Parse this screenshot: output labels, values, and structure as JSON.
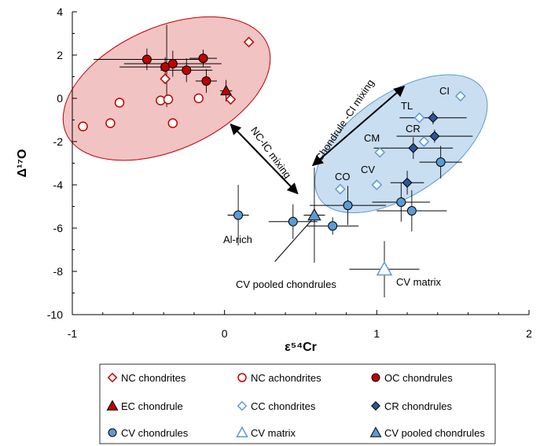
{
  "chart_data": {
    "type": "scatter",
    "xlabel": "ε⁵⁴Cr",
    "ylabel": "Δ¹⁷O",
    "xlim": [
      -1,
      2
    ],
    "ylim": [
      -10,
      4
    ],
    "x_ticks": [
      "-1",
      "0",
      "1",
      "2"
    ],
    "y_ticks": [
      "4",
      "2",
      "0",
      "-2",
      "-4",
      "-6",
      "-8",
      "-10"
    ],
    "grid": false,
    "legend_position": "bottom",
    "series": [
      {
        "name": "NC chondrites",
        "marker": "diamond-open",
        "color": "#c00000",
        "points": [
          [
            0.16,
            2.6
          ],
          [
            -0.39,
            0.9
          ],
          [
            0.04,
            -0.05
          ]
        ]
      },
      {
        "name": "NC achondrites",
        "marker": "circle-open",
        "color": "#c00000",
        "points": [
          [
            -0.93,
            -1.3
          ],
          [
            -0.75,
            -1.15
          ],
          [
            -0.69,
            -0.2
          ],
          [
            -0.42,
            -0.1
          ],
          [
            -0.37,
            -0.05
          ],
          [
            -0.34,
            -1.15
          ],
          [
            -0.17,
            0.0
          ]
        ]
      },
      {
        "name": "OC chondrules",
        "marker": "circle-filled",
        "color": "#c00000",
        "points": [
          [
            -0.51,
            1.8
          ],
          [
            -0.39,
            1.45
          ],
          [
            -0.34,
            1.6
          ],
          [
            -0.25,
            1.3
          ],
          [
            -0.14,
            1.85
          ],
          [
            -0.12,
            0.8
          ]
        ]
      },
      {
        "name": "EC chondrule",
        "marker": "triangle-filled",
        "color": "#c00000",
        "points": [
          [
            0.01,
            0.35
          ]
        ]
      },
      {
        "name": "CC chondrites",
        "marker": "diamond-open",
        "color": "#5b9bd5",
        "points": [
          [
            1.55,
            0.1
          ],
          [
            1.28,
            -0.9
          ],
          [
            1.31,
            -2.0
          ],
          [
            1.02,
            -2.5
          ],
          [
            1.0,
            -4.0
          ],
          [
            0.76,
            -4.2
          ]
        ]
      },
      {
        "name": "CR chondrules",
        "marker": "diamond-filled",
        "color": "#2f5597",
        "points": [
          [
            1.37,
            -0.9
          ],
          [
            1.38,
            -1.75
          ],
          [
            1.24,
            -2.3
          ],
          [
            1.2,
            -3.9
          ]
        ]
      },
      {
        "name": "CV chondrules",
        "marker": "circle-filled",
        "color": "#5b9bd5",
        "points": [
          [
            0.09,
            -5.4
          ],
          [
            0.45,
            -5.7
          ],
          [
            0.71,
            -5.9
          ],
          [
            0.81,
            -4.95
          ],
          [
            1.16,
            -4.8
          ],
          [
            1.23,
            -5.2
          ],
          [
            1.42,
            -2.95
          ]
        ]
      },
      {
        "name": "CV matrix",
        "marker": "triangle-open",
        "color": "#5b9bd5",
        "points": [
          [
            1.05,
            -7.9
          ]
        ]
      },
      {
        "name": "CV pooled chondrules",
        "marker": "triangle-filled",
        "color": "#5b9bd5",
        "points": [
          [
            0.59,
            -5.4
          ]
        ]
      }
    ],
    "annotations": {
      "nc_ic": "NC-IC mixing",
      "chondrule_ci": "Chondrule -CI mixing",
      "ci": "CI",
      "tl": "TL",
      "cr": "CR",
      "cm": "CM",
      "cv": "CV",
      "co": "CO",
      "al_rich": "Al-rich",
      "cv_pooled": "CV pooled chondrules",
      "cv_matrix": "CV matrix"
    }
  },
  "legend": {
    "items": [
      {
        "label": "NC chondrites",
        "marker": "diamond-open",
        "color": "#c00000"
      },
      {
        "label": "NC achondrites",
        "marker": "circle-open",
        "color": "#c00000"
      },
      {
        "label": "OC chondrules",
        "marker": "circle-filled",
        "color": "#c00000"
      },
      {
        "label": "EC chondrule",
        "marker": "triangle-filled",
        "color": "#c00000"
      },
      {
        "label": "CC chondrites",
        "marker": "diamond-open",
        "color": "#5b9bd5"
      },
      {
        "label": "CR chondrules",
        "marker": "diamond-filled",
        "color": "#2f5597"
      },
      {
        "label": "CV chondrules",
        "marker": "circle-filled",
        "color": "#5b9bd5"
      },
      {
        "label": "CV matrix",
        "marker": "triangle-open",
        "color": "#5b9bd5"
      },
      {
        "label": "CV pooled chondrules",
        "marker": "triangle-filled",
        "color": "#5b9bd5"
      }
    ]
  }
}
